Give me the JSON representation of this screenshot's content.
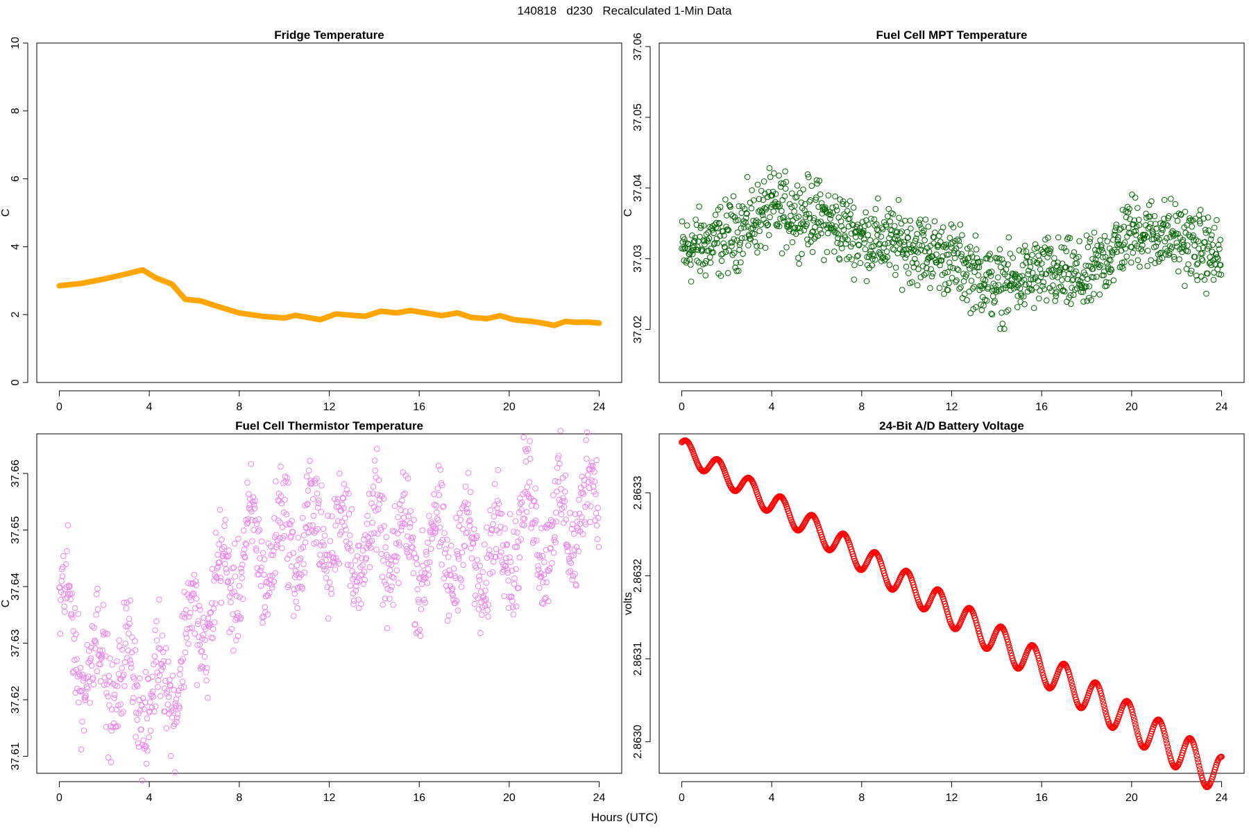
{
  "suptitle": "140818   d230   Recalculated 1-Min Data",
  "xlabel": "Hours (UTC)",
  "chart_data": [
    {
      "type": "line",
      "title": "Fridge Temperature",
      "ylabel": "C",
      "xlabel": "",
      "color": "#FFA500",
      "xlim": [
        0,
        24
      ],
      "ylim": [
        0,
        10
      ],
      "xticks": [
        "0",
        "4",
        "8",
        "12",
        "16",
        "20",
        "24"
      ],
      "yticks": [
        "0",
        "2",
        "4",
        "6",
        "8",
        "10"
      ],
      "x": [
        0,
        1,
        2,
        3,
        3.7,
        4.3,
        5,
        5.6,
        6.3,
        7,
        8,
        9,
        10,
        10.5,
        11,
        11.6,
        12.3,
        13,
        13.6,
        14.3,
        15,
        15.6,
        16.3,
        17,
        17.7,
        18.3,
        19,
        19.6,
        20.2,
        21,
        21.5,
        22,
        22.5,
        23,
        23.5,
        24
      ],
      "values": [
        2.85,
        2.92,
        3.05,
        3.2,
        3.32,
        3.08,
        2.9,
        2.45,
        2.4,
        2.25,
        2.05,
        1.95,
        1.9,
        1.98,
        1.92,
        1.85,
        2.02,
        1.98,
        1.95,
        2.1,
        2.05,
        2.12,
        2.05,
        1.97,
        2.05,
        1.92,
        1.88,
        1.97,
        1.85,
        1.8,
        1.75,
        1.68,
        1.8,
        1.77,
        1.78,
        1.75
      ]
    },
    {
      "type": "scatter",
      "title": "Fuel Cell MPT Temperature",
      "ylabel": "C",
      "xlabel": "",
      "color": "#006400",
      "xlim": [
        0,
        24
      ],
      "ylim": [
        37.0125,
        37.0605
      ],
      "xticks": [
        "0",
        "4",
        "8",
        "12",
        "16",
        "20",
        "24"
      ],
      "yticks": [
        "37.02",
        "37.03",
        "37.04",
        "37.05",
        "37.06"
      ],
      "trend_x": [
        0,
        2,
        4,
        6,
        8,
        10,
        12,
        14,
        16,
        18,
        20,
        22,
        24
      ],
      "trend_y": [
        37.031,
        37.033,
        37.037,
        37.036,
        37.033,
        37.032,
        37.03,
        37.026,
        37.028,
        37.027,
        37.034,
        37.033,
        37.03
      ],
      "spread": 0.0075
    },
    {
      "type": "scatter",
      "title": "Fuel Cell Thermistor Temperature",
      "ylabel": "C",
      "xlabel": "",
      "color": "#EE82EE",
      "xlim": [
        0,
        24
      ],
      "ylim": [
        37.607,
        37.667
      ],
      "xticks": [
        "0",
        "4",
        "8",
        "12",
        "16",
        "20",
        "24"
      ],
      "yticks": [
        "37.61",
        "37.62",
        "37.63",
        "37.64",
        "37.65",
        "37.66"
      ],
      "trend_x": [
        0,
        1,
        2,
        3,
        4,
        5,
        6,
        7,
        8,
        9,
        10,
        11,
        12,
        13,
        14,
        15,
        16,
        17,
        18,
        19,
        20,
        21,
        22,
        23,
        24
      ],
      "trend_y": [
        37.636,
        37.628,
        37.625,
        37.624,
        37.62,
        37.624,
        37.632,
        37.638,
        37.645,
        37.646,
        37.648,
        37.649,
        37.65,
        37.647,
        37.648,
        37.647,
        37.646,
        37.647,
        37.646,
        37.644,
        37.649,
        37.652,
        37.649,
        37.653,
        37.655
      ],
      "spread": 0.013
    },
    {
      "type": "line",
      "title": "24-Bit A/D Battery Voltage",
      "ylabel": "volts",
      "xlabel": "",
      "color": "#FF0000",
      "xlim": [
        0,
        24
      ],
      "ylim": [
        2.862962,
        2.863371
      ],
      "xticks": [
        "0",
        "4",
        "8",
        "12",
        "16",
        "20",
        "24"
      ],
      "yticks": [
        "2.8630",
        "2.8631",
        "2.8632",
        "2.8633"
      ],
      "start_value": 2.86336,
      "end_value": 2.86297,
      "cycle_hours": 1.4
    }
  ]
}
